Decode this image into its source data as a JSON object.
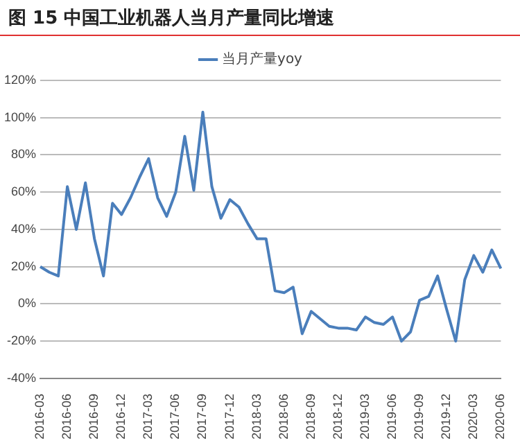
{
  "chart_data": {
    "type": "line",
    "title": "图 15 中国工业机器人当月产量同比增速",
    "categories": [
      "2016-03",
      null,
      null,
      "2016-06",
      null,
      null,
      "2016-09",
      null,
      null,
      "2016-12",
      null,
      null,
      "2017-03",
      null,
      null,
      "2017-06",
      null,
      null,
      "2017-09",
      null,
      null,
      "2017-12",
      null,
      null,
      "2018-03",
      null,
      null,
      "2018-06",
      null,
      null,
      "2018-09",
      null,
      null,
      "2018-12",
      null,
      null,
      "2019-03",
      null,
      null,
      "2019-06",
      null,
      null,
      "2019-09",
      null,
      null,
      "2019-12",
      null,
      null,
      "2020-03",
      null,
      null,
      "2020-06"
    ],
    "series": [
      {
        "name": "当月产量yoy",
        "color": "#4a7ebb",
        "values": [
          20,
          17,
          15,
          63,
          40,
          65,
          35,
          15,
          54,
          48,
          57,
          68,
          78,
          57,
          47,
          60,
          90,
          61,
          103,
          63,
          46,
          56,
          52,
          43,
          35,
          35,
          7,
          6,
          9,
          -16,
          -4,
          -8,
          -12,
          -13,
          -13,
          -14,
          -7,
          -10,
          -11,
          -7,
          -20,
          -15,
          2,
          4,
          15,
          -3,
          -20,
          13,
          26,
          17,
          29,
          19
        ]
      }
    ],
    "ylim": [
      -40,
      120
    ],
    "yticks": [
      {
        "value": -40,
        "label": "-40%"
      },
      {
        "value": -20,
        "label": "-20%"
      },
      {
        "value": 0,
        "label": "0%"
      },
      {
        "value": 20,
        "label": "20%"
      },
      {
        "value": 40,
        "label": "40%"
      },
      {
        "value": 60,
        "label": "60%"
      },
      {
        "value": 80,
        "label": "80%"
      },
      {
        "value": 100,
        "label": "100%"
      },
      {
        "value": 120,
        "label": "120%"
      }
    ],
    "grid": "y",
    "legend": "top",
    "marker": "none",
    "line_style": "solid"
  }
}
